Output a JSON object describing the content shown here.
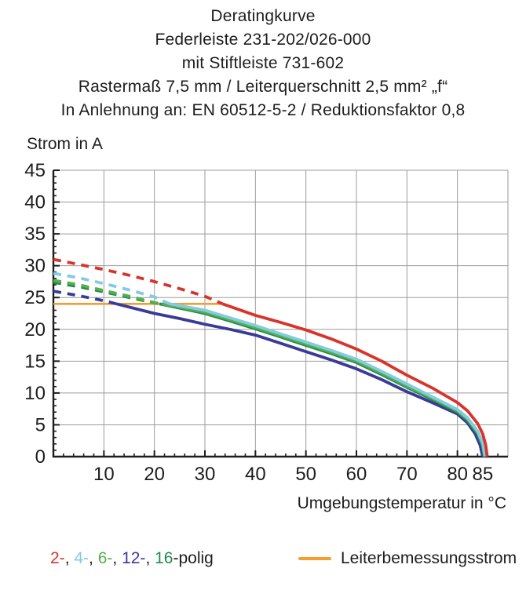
{
  "title_lines": [
    "Deratingkurve",
    "Federleiste 231-202/026-000",
    "mit Stiftleiste 731-602",
    "Rastermaß 7,5 mm / Leiterquerschnitt 2,5 mm² „f“",
    "In Anlehnung an: EN 60512-5-2 / Reduktionsfaktor 0,8"
  ],
  "legend": {
    "separator": ", ",
    "poles_suffix": "-polig",
    "poles": [
      {
        "label": "2-",
        "color": "#d8342c"
      },
      {
        "label": "4-",
        "color": "#82cbe2"
      },
      {
        "label": "6-",
        "color": "#56ae4d"
      },
      {
        "label": "12-",
        "color": "#3a3a99"
      },
      {
        "label": "16",
        "color": "#1f8c4c"
      }
    ],
    "rated_label": "Leiterbemessungsstrom",
    "rated_color": "#f59d2f"
  },
  "chart_data": {
    "type": "line",
    "title": "Deratingkurve",
    "xlabel": "Umgebungstemperatur in °C",
    "ylabel": "Strom in A",
    "xlim": [
      0,
      90
    ],
    "ylim": [
      0,
      45
    ],
    "grid": true,
    "x_gridlines": [
      10,
      20,
      30,
      40,
      50,
      60,
      70,
      80,
      90
    ],
    "x_tick_labels": [
      10,
      20,
      30,
      40,
      50,
      60,
      70,
      80,
      85
    ],
    "y_gridlines": [
      5,
      10,
      15,
      20,
      25,
      30,
      35,
      40,
      45
    ],
    "y_tick_labels": [
      0,
      5,
      10,
      15,
      20,
      25,
      30,
      35,
      40,
      45
    ],
    "x_minor_step": 2,
    "y_minor_step": 1,
    "colors": {
      "grid": "#9b9b9b",
      "axis": "#1d1d1b",
      "text": "#1d1d1b"
    },
    "rated_current": {
      "label": "Leiterbemessungsstrom",
      "value": 24,
      "x_start": 0,
      "x_end": 33.5,
      "color": "#f59d2f"
    },
    "series": [
      {
        "name": "12-polig",
        "color": "#3a3a99",
        "dashed_above": 24,
        "points_dashed": [
          [
            0,
            26
          ],
          [
            5,
            25.3
          ],
          [
            10,
            24.5
          ],
          [
            12.5,
            24
          ]
        ],
        "points_solid": [
          [
            12.5,
            24
          ],
          [
            20,
            22.5
          ],
          [
            25,
            21.7
          ],
          [
            30,
            20.8
          ],
          [
            35,
            20.0
          ],
          [
            40,
            19.1
          ],
          [
            45,
            17.8
          ],
          [
            50,
            16.5
          ],
          [
            55,
            15.2
          ],
          [
            60,
            13.8
          ],
          [
            65,
            12.1
          ],
          [
            70,
            10.2
          ],
          [
            75,
            8.5
          ],
          [
            80,
            6.7
          ],
          [
            82,
            5.3
          ],
          [
            83.5,
            3.6
          ],
          [
            84.5,
            1.8
          ],
          [
            85,
            0
          ]
        ]
      },
      {
        "name": "16-polig",
        "color": "#1f8c4c",
        "dashed_above": 24,
        "points_dashed": [
          [
            0,
            27.4
          ],
          [
            5,
            26.7
          ],
          [
            10,
            25.9
          ],
          [
            15,
            25.0
          ],
          [
            21,
            24
          ]
        ],
        "points_solid": [
          [
            21,
            24
          ],
          [
            30,
            22.5
          ],
          [
            35,
            21.3
          ],
          [
            40,
            20.1
          ],
          [
            45,
            18.8
          ],
          [
            50,
            17.5
          ],
          [
            55,
            16.2
          ],
          [
            60,
            14.8
          ],
          [
            65,
            12.9
          ],
          [
            70,
            10.9
          ],
          [
            75,
            9.0
          ],
          [
            80,
            7.0
          ],
          [
            82,
            5.7
          ],
          [
            84,
            3.6
          ],
          [
            85,
            1.7
          ],
          [
            85.3,
            0
          ]
        ]
      },
      {
        "name": "6-polig",
        "color": "#56ae4d",
        "dashed_above": 24,
        "points_dashed": [
          [
            0,
            27.7
          ],
          [
            5,
            27.0
          ],
          [
            10,
            26.1
          ],
          [
            15,
            25.2
          ],
          [
            20,
            24.2
          ],
          [
            21.5,
            24
          ]
        ],
        "points_solid": [
          [
            21.5,
            24
          ],
          [
            30,
            22.7
          ],
          [
            35,
            21.5
          ],
          [
            40,
            20.3
          ],
          [
            45,
            19.0
          ],
          [
            50,
            17.7
          ],
          [
            55,
            16.4
          ],
          [
            60,
            15.0
          ],
          [
            65,
            13.1
          ],
          [
            70,
            11.1
          ],
          [
            75,
            9.2
          ],
          [
            80,
            7.2
          ],
          [
            82,
            5.9
          ],
          [
            84,
            3.8
          ],
          [
            85,
            1.9
          ],
          [
            85.4,
            0
          ]
        ]
      },
      {
        "name": "4-polig",
        "color": "#82cbe2",
        "dashed_above": 24,
        "points_dashed": [
          [
            0,
            28.8
          ],
          [
            5,
            28.1
          ],
          [
            10,
            27.2
          ],
          [
            15,
            26.2
          ],
          [
            20,
            25.1
          ],
          [
            23,
            24
          ]
        ],
        "points_solid": [
          [
            23,
            24
          ],
          [
            30,
            23.0
          ],
          [
            35,
            21.8
          ],
          [
            40,
            20.6
          ],
          [
            45,
            19.3
          ],
          [
            50,
            18.0
          ],
          [
            55,
            16.7
          ],
          [
            60,
            15.3
          ],
          [
            65,
            13.4
          ],
          [
            70,
            11.4
          ],
          [
            75,
            9.4
          ],
          [
            80,
            7.4
          ],
          [
            82,
            6.1
          ],
          [
            84,
            4.0
          ],
          [
            85,
            2.2
          ],
          [
            85.5,
            0
          ]
        ]
      },
      {
        "name": "2-polig",
        "color": "#d8342c",
        "dashed_above": 24,
        "points_dashed": [
          [
            0,
            31
          ],
          [
            5,
            30.2
          ],
          [
            10,
            29.4
          ],
          [
            15,
            28.5
          ],
          [
            20,
            27.5
          ],
          [
            25,
            26.4
          ],
          [
            30,
            25.2
          ],
          [
            33.5,
            24
          ]
        ],
        "points_solid": [
          [
            33.5,
            24
          ],
          [
            40,
            22.2
          ],
          [
            45,
            21.1
          ],
          [
            50,
            19.9
          ],
          [
            55,
            18.5
          ],
          [
            60,
            16.9
          ],
          [
            65,
            15.0
          ],
          [
            70,
            12.8
          ],
          [
            75,
            10.8
          ],
          [
            80,
            8.5
          ],
          [
            82,
            7.2
          ],
          [
            84,
            5.2
          ],
          [
            85,
            3.6
          ],
          [
            85.6,
            1.8
          ],
          [
            85.9,
            0
          ]
        ]
      }
    ]
  }
}
